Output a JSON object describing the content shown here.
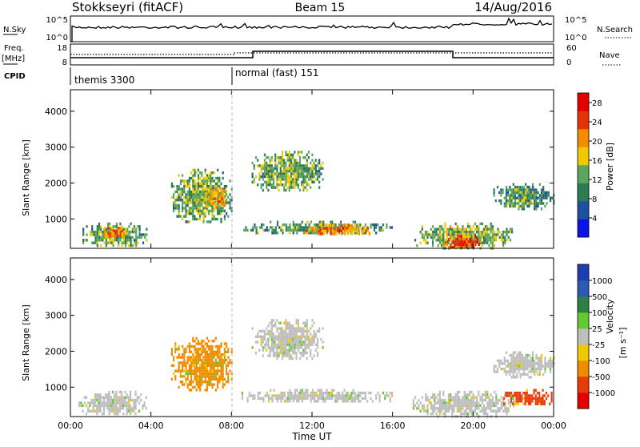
{
  "header": {
    "station": "Stokkseyri (fitACF)",
    "beam": "Beam 15",
    "date": "14/Aug/2016"
  },
  "top_panels": {
    "nsky_label": "N.Sky",
    "nsky_ticks": [
      "10^5",
      "10^0"
    ],
    "nsearch_label": "N.Search",
    "nsearch_ticks": [
      "10^5",
      "10^0"
    ],
    "freq_label": "Freq.",
    "freq_unit": "[MHz]",
    "freq_ticks": [
      "18",
      "8"
    ],
    "nave_label": "Nave",
    "nave_ticks": [
      "60",
      "0"
    ],
    "cpid_label": "CPID",
    "cpid_segments": [
      {
        "label": "themis 3300"
      },
      {
        "label": "normal (fast) 151"
      }
    ]
  },
  "chart_data": [
    {
      "type": "heatmap",
      "xlabel": "Time UT",
      "ylabel": "Slant Range [km]",
      "ylim": [
        180,
        4600
      ],
      "xlim_hours": [
        0,
        24
      ],
      "x_ticks": [
        "00:00",
        "04:00",
        "08:00",
        "12:00",
        "16:00",
        "20:00",
        "00:00"
      ],
      "y_ticks": [
        1000,
        2000,
        3000,
        4000
      ],
      "colorbar": {
        "label": "Power [dB]",
        "ticks": [
          4,
          8,
          12,
          16,
          20,
          24,
          28
        ],
        "range": [
          0,
          30
        ],
        "colors": [
          "#0a14e6",
          "#1e50a0",
          "#2e7a56",
          "#5aa65a",
          "#f0c800",
          "#f58c00",
          "#e6320a",
          "#e60000"
        ]
      },
      "regions": [
        {
          "t": [
            0.6,
            3.8
          ],
          "r": [
            250,
            900
          ],
          "value": 14
        },
        {
          "t": [
            1.4,
            3.0
          ],
          "r": [
            500,
            780
          ],
          "value": 22
        },
        {
          "t": [
            5.0,
            8.0
          ],
          "r": [
            900,
            2400
          ],
          "value": 14
        },
        {
          "t": [
            6.6,
            7.8
          ],
          "r": [
            1300,
            1900
          ],
          "value": 20
        },
        {
          "t": [
            9.0,
            12.5
          ],
          "r": [
            1800,
            2900
          ],
          "value": 14
        },
        {
          "t": [
            8.5,
            16.0
          ],
          "r": [
            600,
            950
          ],
          "value": 13
        },
        {
          "t": [
            11.5,
            15.0
          ],
          "r": [
            600,
            850
          ],
          "value": 22
        },
        {
          "t": [
            17.0,
            22.0
          ],
          "r": [
            200,
            900
          ],
          "value": 15
        },
        {
          "t": [
            18.5,
            20.5
          ],
          "r": [
            200,
            550
          ],
          "value": 26
        },
        {
          "t": [
            21.0,
            24.0
          ],
          "r": [
            1300,
            2000
          ],
          "value": 12
        }
      ]
    },
    {
      "type": "heatmap",
      "xlabel": "Time UT",
      "ylabel": "Slant Range [km]",
      "ylim": [
        180,
        4600
      ],
      "xlim_hours": [
        0,
        24
      ],
      "x_ticks": [
        "00:00",
        "04:00",
        "08:00",
        "12:00",
        "16:00",
        "20:00",
        "00:00"
      ],
      "y_ticks": [
        1000,
        2000,
        3000,
        4000
      ],
      "colorbar": {
        "label": "Velocity",
        "unit": "[m s⁻¹]",
        "ticks": [
          "1000",
          "500",
          "100",
          "25",
          "-25",
          "-100",
          "-500",
          "-1000"
        ],
        "colors": [
          "#1e3cb4",
          "#2a5ab4",
          "#2e8040",
          "#64c830",
          "#bebebe",
          "#f0c800",
          "#f08c00",
          "#e63c0a",
          "#e60000"
        ]
      },
      "regions": [
        {
          "t": [
            0.4,
            3.8
          ],
          "r": [
            250,
            900
          ],
          "value": "ground"
        },
        {
          "t": [
            5.0,
            8.0
          ],
          "r": [
            900,
            2400
          ],
          "value": "-100"
        },
        {
          "t": [
            9.0,
            12.5
          ],
          "r": [
            1800,
            2900
          ],
          "value": "ground"
        },
        {
          "t": [
            8.5,
            16.0
          ],
          "r": [
            600,
            950
          ],
          "value": "ground"
        },
        {
          "t": [
            17.0,
            22.0
          ],
          "r": [
            200,
            900
          ],
          "value": "ground"
        },
        {
          "t": [
            21.5,
            24.0
          ],
          "r": [
            500,
            950
          ],
          "value": "-500"
        },
        {
          "t": [
            21.0,
            24.0
          ],
          "r": [
            1300,
            2000
          ],
          "value": "ground"
        }
      ]
    }
  ]
}
